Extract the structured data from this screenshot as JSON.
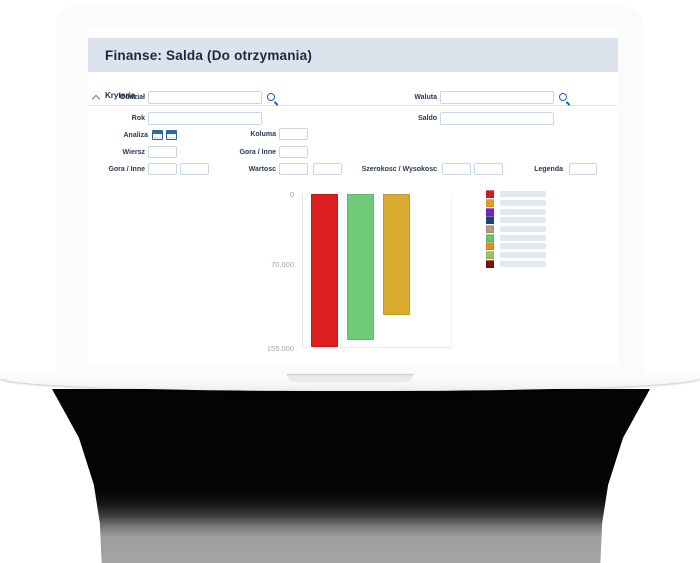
{
  "app": {
    "title": "Finanse: Salda (Do otrzymania)"
  },
  "criteria": {
    "label": "Kryteria",
    "fields": {
      "oddzial": "Oddział",
      "rok": "Rok",
      "waluta": "Waluta",
      "saldo": "Saldo",
      "analiza": "Analiza",
      "koluma": "Koluma",
      "wiersz": "Wiersz",
      "gora_inne_a": "Gora / Inne",
      "gora_inne_b": "Gora / Inne",
      "wartosc": "Wartosc",
      "szerokosc_wysokosc": "Szerokosc / Wysokosc",
      "legenda": "Legenda"
    },
    "inputs": {
      "oddzial_value": "",
      "rok_value": "",
      "waluta_value": "",
      "saldo_value": "",
      "koluma_value": "",
      "wiersz_value": "",
      "gora_inne_1": "",
      "gora_inne_2": "",
      "wartosc_1": "",
      "wartosc_2": "",
      "szerokosc": "",
      "wysokosc": "",
      "legenda_value": ""
    },
    "icons": {
      "oddzial_lookup": "magnifier-icon",
      "waluta_lookup": "magnifier-icon",
      "analiza_left": "table-icon",
      "analiza_right": "table-icon",
      "section_toggle": "chevron-up-icon"
    }
  },
  "chart_data": {
    "type": "bar",
    "title": "",
    "y_axis_inverted": true,
    "ylim": [
      0,
      155000
    ],
    "yticks": [
      {
        "label": "0",
        "value": 0
      },
      {
        "label": "70.000",
        "value": 70000
      },
      {
        "label": "155.000",
        "value": 155000
      }
    ],
    "values": [
      155000,
      148000,
      123000
    ],
    "bar_colors": [
      "#dc1e1e",
      "#6fcb79",
      "#d9ab2e"
    ],
    "grid": false,
    "legend": {
      "position": "right",
      "labels_visible": false,
      "swatch_colors": [
        "#d6191b",
        "#e0a11f",
        "#7b1fd6",
        "#224277",
        "#b49a7a",
        "#5ecb6b",
        "#e08f1f",
        "#9dc35d",
        "#7c1212"
      ]
    }
  },
  "colors": {
    "header_bar": "#dce3ed",
    "accent_blue": "#1464b4",
    "label_text": "#2a3950",
    "tick_text": "#a0a5ab",
    "input_border": "#c9d6e6",
    "legend_placeholder": "#e3e9f1"
  }
}
